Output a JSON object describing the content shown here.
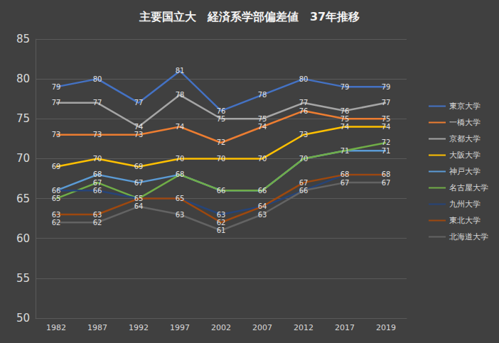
{
  "chart_data": {
    "type": "line",
    "title": "主要国立大　経済系学部偏差値　37年推移",
    "categories": [
      "1982",
      "1987",
      "1992",
      "1997",
      "2002",
      "2007",
      "2012",
      "2017",
      "2019"
    ],
    "series": [
      {
        "name": "東京大学",
        "color": "#4472C4",
        "values": [
          79,
          80,
          77,
          81,
          76,
          78,
          80,
          79,
          79
        ]
      },
      {
        "name": "一橋大学",
        "color": "#ED7D31",
        "values": [
          73,
          73,
          73,
          74,
          72,
          74,
          76,
          75,
          75
        ]
      },
      {
        "name": "京都大学",
        "color": "#A5A5A5",
        "values": [
          77,
          77,
          74,
          78,
          75,
          75,
          77,
          76,
          77
        ]
      },
      {
        "name": "大阪大学",
        "color": "#FFC000",
        "values": [
          69,
          70,
          69,
          70,
          70,
          70,
          73,
          74,
          74
        ]
      },
      {
        "name": "神戸大学",
        "color": "#5B9BD5",
        "values": [
          66,
          68,
          67,
          68,
          66,
          66,
          70,
          71,
          71
        ]
      },
      {
        "name": "名古屋大学",
        "color": "#70AD47",
        "values": [
          65,
          67,
          65,
          68,
          66,
          66,
          70,
          71,
          72
        ]
      },
      {
        "name": "九州大学",
        "color": "#264478",
        "values": [
          66,
          66,
          65,
          65,
          63,
          64,
          66,
          68,
          68
        ]
      },
      {
        "name": "東北大学",
        "color": "#9E480E",
        "values": [
          63,
          63,
          65,
          65,
          62,
          64,
          67,
          68,
          68
        ]
      },
      {
        "name": "北海道大学",
        "color": "#636363",
        "values": [
          62,
          62,
          64,
          63,
          61,
          63,
          66,
          67,
          67
        ]
      }
    ],
    "ylim": [
      50,
      85
    ],
    "yticks": [
      50,
      55,
      60,
      65,
      70,
      75,
      80,
      85
    ],
    "grid": true,
    "legend": "right",
    "data_labels": true
  }
}
